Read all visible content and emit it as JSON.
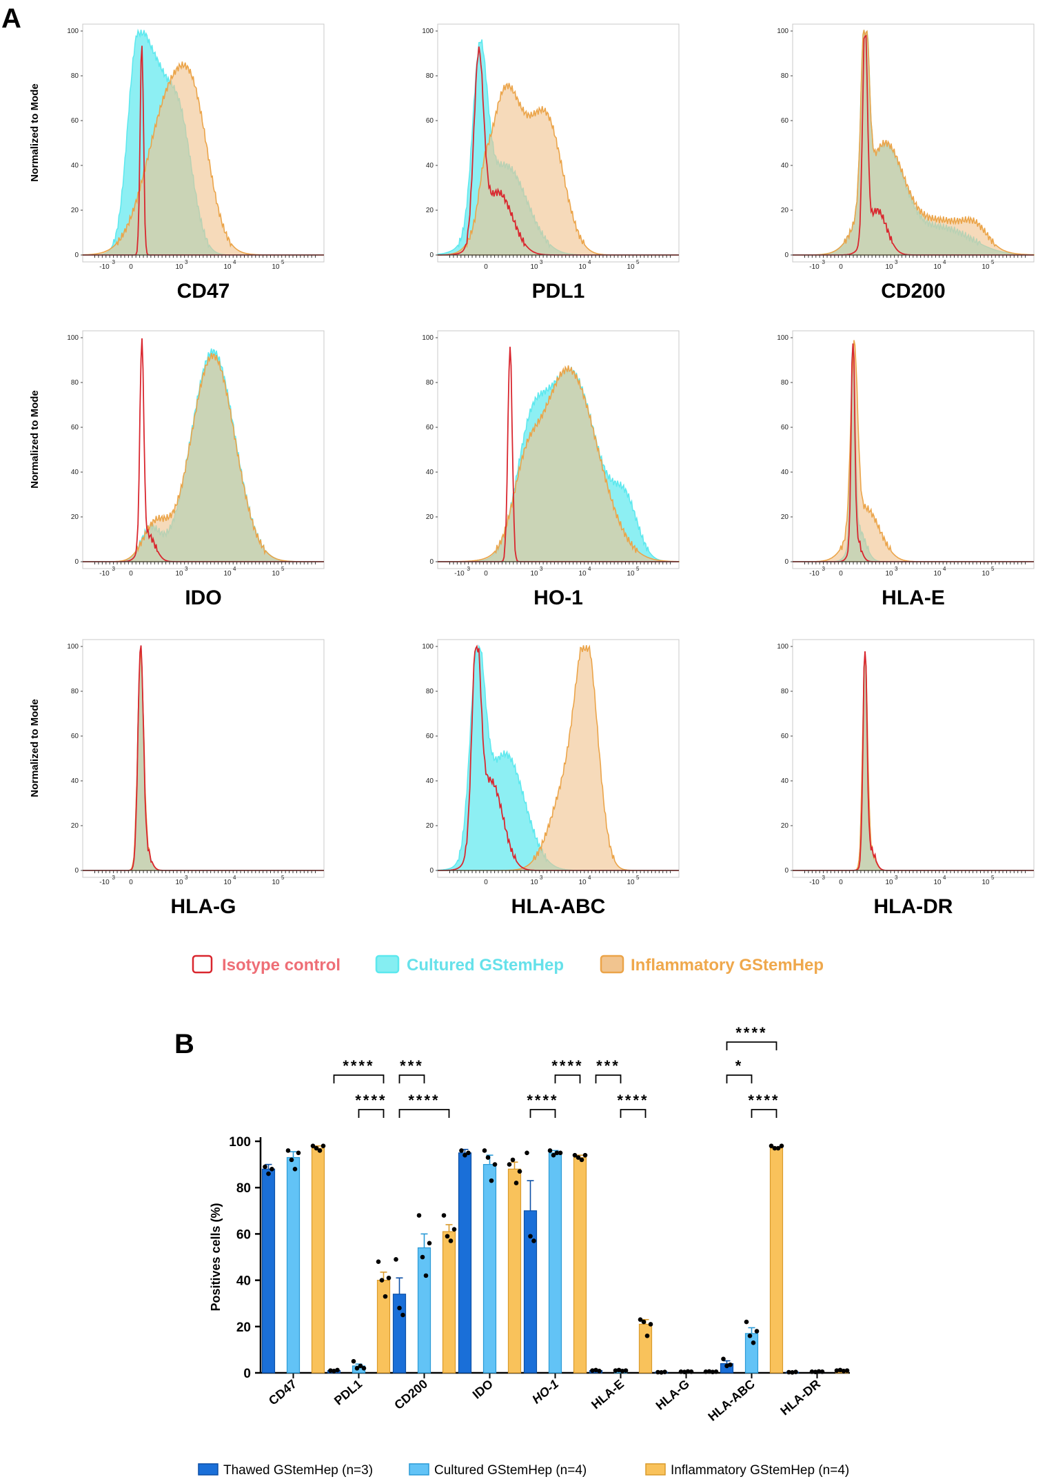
{
  "panel_a_label": "A",
  "panel_b_label": "B",
  "colors": {
    "isotype": "#d9262e",
    "isotype_text": "#ee6e76",
    "cultured": "#5ce8ee",
    "cultured_text": "#66e1ea",
    "inflammatory": "#f1c48f",
    "inflammatory_stroke": "#eba449",
    "inflammatory_text": "#efa84c",
    "overlap": "#a8c894",
    "thawed_bar": "#1a6fd8",
    "cultured_bar": "#62c3f6",
    "inflam_bar": "#f9c25b"
  },
  "legend_a": {
    "isotype": "Isotype control",
    "cultured": "Cultured GStemHep",
    "inflammatory": "Inflammatory GStemHep"
  },
  "histogram_axis": {
    "ylabel": "Normalized to Mode",
    "y_ticks": [
      "0",
      "20",
      "40",
      "60",
      "80",
      "100"
    ],
    "x_ticks_a": [
      "-10",
      "0",
      "10",
      "10",
      "10"
    ],
    "x_ticks_b": [
      "0",
      "10",
      "10",
      "10"
    ],
    "x_exp_a": [
      "3",
      "",
      "3",
      "4",
      "5"
    ],
    "x_exp_b": [
      "",
      "3",
      "4",
      "5"
    ]
  },
  "chart_data": [
    {
      "type": "histogram",
      "panel": "A",
      "markers": [
        "CD47",
        "PDL1",
        "CD200",
        "IDO",
        "HO-1",
        "HLA-E",
        "HLA-G",
        "HLA-ABC",
        "HLA-DR"
      ],
      "axis_style": [
        "a",
        "b",
        "a",
        "a",
        "a",
        "a",
        "a",
        "b",
        "a"
      ],
      "series_names": [
        "Isotype control",
        "Cultured GStemHep",
        "Inflammatory GStemHep"
      ],
      "x_scale": "biexponential",
      "y_range": [
        0,
        100
      ],
      "ylabel": "Normalized to Mode"
    },
    {
      "type": "bar",
      "panel": "B",
      "categories": [
        "CD47",
        "PDL1",
        "CD200",
        "IDO",
        "HO-1",
        "HLA-E",
        "HLA-G",
        "HLA-ABC",
        "HLA-DR"
      ],
      "ylabel": "Positives cells (%)",
      "ylim": [
        0,
        100
      ],
      "y_ticks": [
        "0",
        "20",
        "40",
        "60",
        "80",
        "100"
      ],
      "series": [
        {
          "name": "Thawed GStemHep (n=3)",
          "values": [
            88,
            1,
            34,
            95,
            70,
            1,
            0.3,
            4,
            0.3
          ],
          "errors": [
            2,
            0.3,
            7,
            1.5,
            13,
            0.3,
            0.1,
            1.2,
            0.1
          ],
          "points": [
            [
              89,
              86,
              88
            ],
            [
              1,
              0.8,
              1.2
            ],
            [
              49,
              28,
              25
            ],
            [
              96,
              94,
              95
            ],
            [
              95,
              59,
              57
            ],
            [
              1,
              1.2,
              0.8
            ],
            [
              0.3,
              0.2,
              0.4
            ],
            [
              6,
              3,
              3.5
            ],
            [
              0.3,
              0.2,
              0.4
            ]
          ]
        },
        {
          "name": "Cultured GStemHep (n=4)",
          "values": [
            93,
            3,
            54,
            90,
            95,
            1,
            0.5,
            17,
            0.5
          ],
          "errors": [
            2.5,
            0.8,
            6,
            4,
            1,
            0.3,
            0.2,
            2.5,
            0.2
          ],
          "points": [
            [
              96,
              92,
              88,
              95
            ],
            [
              5,
              2,
              3,
              2
            ],
            [
              68,
              50,
              42,
              56
            ],
            [
              96,
              93,
              83,
              90
            ],
            [
              96,
              94,
              95,
              95
            ],
            [
              1,
              1.2,
              0.8,
              1
            ],
            [
              0.5,
              0.4,
              0.6,
              0.5
            ],
            [
              22,
              16,
              13,
              18
            ],
            [
              0.5,
              0.4,
              0.6,
              0.5
            ]
          ]
        },
        {
          "name": "Inflammatory GStemHep (n=4)",
          "values": [
            97,
            40,
            61,
            88,
            93,
            21,
            0.5,
            97,
            1
          ],
          "errors": [
            1,
            3.5,
            3,
            3,
            1,
            2,
            0.2,
            0.4,
            0.3
          ],
          "points": [
            [
              98,
              97,
              96,
              98
            ],
            [
              48,
              40,
              33,
              41
            ],
            [
              68,
              59,
              57,
              62
            ],
            [
              90,
              92,
              82,
              87
            ],
            [
              94,
              93,
              92,
              94
            ],
            [
              23,
              22,
              16,
              21
            ],
            [
              0.5,
              0.6,
              0.4,
              0.5
            ],
            [
              98,
              97,
              97,
              98
            ],
            [
              1,
              1.2,
              0.8,
              1
            ]
          ]
        }
      ],
      "significance": [
        {
          "cat": 1,
          "a": 0,
          "b": 2,
          "label": "****",
          "level": 1
        },
        {
          "cat": 1,
          "a": 1,
          "b": 2,
          "label": "****",
          "level": 0
        },
        {
          "cat": 2,
          "a": 0,
          "b": 1,
          "label": "***",
          "level": 1
        },
        {
          "cat": 2,
          "a": 0,
          "b": 2,
          "label": "****",
          "level": 0
        },
        {
          "cat": 4,
          "a": 1,
          "b": 2,
          "label": "****",
          "level": 1
        },
        {
          "cat": 4,
          "a": 0,
          "b": 1,
          "label": "****",
          "level": 0
        },
        {
          "cat": 5,
          "a": 0,
          "b": 1,
          "label": "***",
          "level": 1
        },
        {
          "cat": 5,
          "a": 1,
          "b": 2,
          "label": "****",
          "level": 0
        },
        {
          "cat": 7,
          "a": 0,
          "b": 2,
          "label": "****",
          "level": 2
        },
        {
          "cat": 7,
          "a": 0,
          "b": 1,
          "label": "*",
          "level": 1
        },
        {
          "cat": 7,
          "a": 1,
          "b": 2,
          "label": "****",
          "level": 0
        }
      ]
    }
  ]
}
